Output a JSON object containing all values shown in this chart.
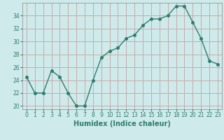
{
  "x": [
    0,
    1,
    2,
    3,
    4,
    5,
    6,
    7,
    8,
    9,
    10,
    11,
    12,
    13,
    14,
    15,
    16,
    17,
    18,
    19,
    20,
    21,
    22,
    23
  ],
  "y": [
    24.5,
    22.0,
    22.0,
    25.5,
    24.5,
    22.0,
    20.0,
    20.0,
    24.0,
    27.5,
    28.5,
    29.0,
    30.5,
    31.0,
    32.5,
    33.5,
    33.5,
    34.0,
    35.5,
    35.5,
    33.0,
    30.5,
    27.0,
    26.5
  ],
  "line_color": "#2e7d6e",
  "marker": "o",
  "marker_size": 2.5,
  "background_color": "#ceeaea",
  "grid_color": "#c8a0a0",
  "xlabel": "Humidex (Indice chaleur)",
  "ylabel": "",
  "xlim": [
    -0.5,
    23.5
  ],
  "ylim": [
    19.5,
    36
  ],
  "yticks": [
    20,
    22,
    24,
    26,
    28,
    30,
    32,
    34
  ],
  "xticks": [
    0,
    1,
    2,
    3,
    4,
    5,
    6,
    7,
    8,
    9,
    10,
    11,
    12,
    13,
    14,
    15,
    16,
    17,
    18,
    19,
    20,
    21,
    22,
    23
  ],
  "tick_fontsize": 5.5,
  "xlabel_fontsize": 7,
  "line_width": 1.0
}
